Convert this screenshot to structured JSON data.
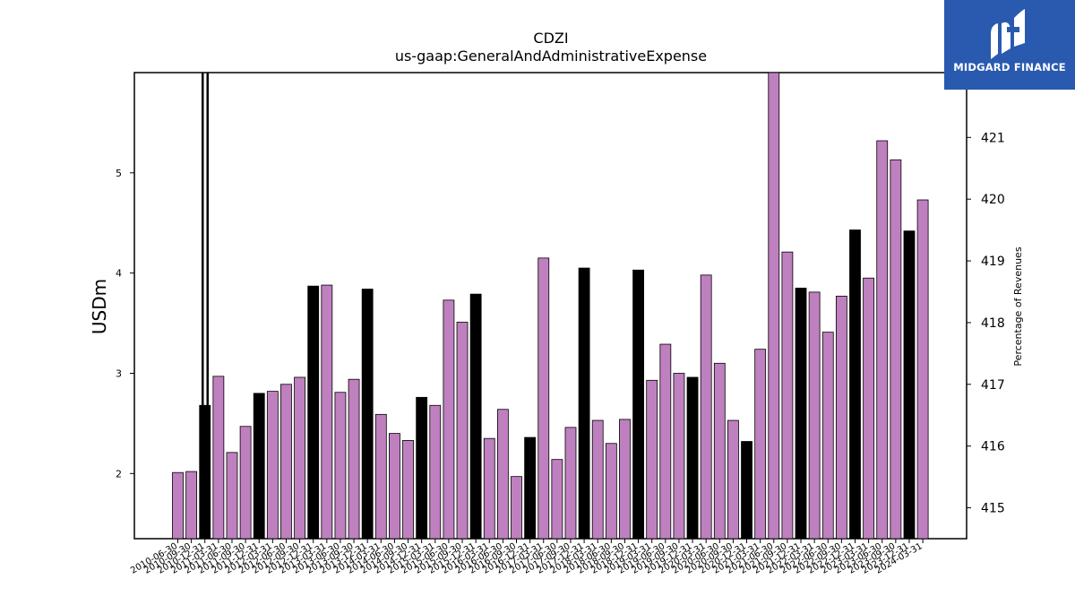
{
  "chart_data": {
    "type": "bar",
    "title": "CDZI",
    "subtitle": "us-gaap:GeneralAndAdministrativeExpense",
    "ylabel": "USDm",
    "y2label": "Percentage of Revenues",
    "ylim": [
      1.35,
      6.0
    ],
    "y2lim": [
      414.5,
      422.05
    ],
    "yticks": [
      2,
      3,
      4,
      5
    ],
    "y2ticks": [
      415,
      416,
      417,
      418,
      419,
      420,
      421
    ],
    "colors": {
      "quarter": "#bf80bf",
      "annual": "#000000"
    },
    "categories": [
      "2010-06-30",
      "2010-09-30",
      "2010-12-31",
      "2011-03-31",
      "2011-06-30",
      "2011-09-30",
      "2011-12-31",
      "2012-03-31",
      "2012-06-30",
      "2012-09-30",
      "2012-12-31",
      "2013-03-31",
      "2013-06-30",
      "2013-09-30",
      "2013-12-31",
      "2014-03-31",
      "2014-06-30",
      "2014-09-30",
      "2014-12-31",
      "2015-03-31",
      "2015-06-30",
      "2015-09-30",
      "2015-12-31",
      "2016-03-31",
      "2016-06-30",
      "2016-09-30",
      "2016-12-31",
      "2017-03-31",
      "2017-06-30",
      "2017-09-30",
      "2017-12-31",
      "2018-03-31",
      "2018-06-30",
      "2018-09-30",
      "2018-12-31",
      "2019-03-31",
      "2019-06-30",
      "2019-09-30",
      "2019-12-31",
      "2020-03-31",
      "2020-06-30",
      "2020-09-30",
      "2020-12-31",
      "2021-03-31",
      "2021-06-30",
      "2021-09-30",
      "2021-12-31",
      "2022-03-31",
      "2022-06-30",
      "2022-09-30",
      "2022-12-31",
      "2023-03-31",
      "2023-06-30",
      "2023-09-30",
      "2023-12-31",
      "2024-03-31"
    ],
    "values": [
      2.01,
      2.02,
      2.68,
      2.97,
      2.21,
      2.47,
      2.8,
      2.82,
      2.89,
      2.96,
      3.87,
      3.88,
      2.81,
      2.94,
      3.84,
      2.59,
      2.4,
      2.33,
      2.76,
      2.68,
      3.73,
      3.51,
      3.79,
      2.35,
      2.64,
      1.97,
      2.36,
      4.15,
      2.14,
      2.46,
      4.05,
      2.53,
      2.3,
      2.54,
      4.03,
      2.93,
      3.29,
      3.0,
      2.96,
      3.98,
      3.1,
      2.53,
      2.32,
      3.24,
      6.0,
      4.21,
      3.85,
      3.81,
      3.41,
      3.77,
      4.43,
      3.95,
      5.32,
      5.13,
      4.42,
      4.73
    ],
    "kind": [
      "q",
      "q",
      "a",
      "q",
      "q",
      "q",
      "a",
      "q",
      "q",
      "q",
      "a",
      "q",
      "q",
      "q",
      "a",
      "q",
      "q",
      "q",
      "a",
      "q",
      "q",
      "q",
      "a",
      "q",
      "q",
      "q",
      "a",
      "q",
      "q",
      "q",
      "a",
      "q",
      "q",
      "q",
      "a",
      "q",
      "q",
      "q",
      "a",
      "q",
      "q",
      "q",
      "a",
      "q",
      "q",
      "q",
      "a",
      "q",
      "q",
      "q",
      "a",
      "q",
      "q",
      "q",
      "a",
      "q"
    ]
  },
  "logo": {
    "text": "MIDGARD FINANCE"
  }
}
